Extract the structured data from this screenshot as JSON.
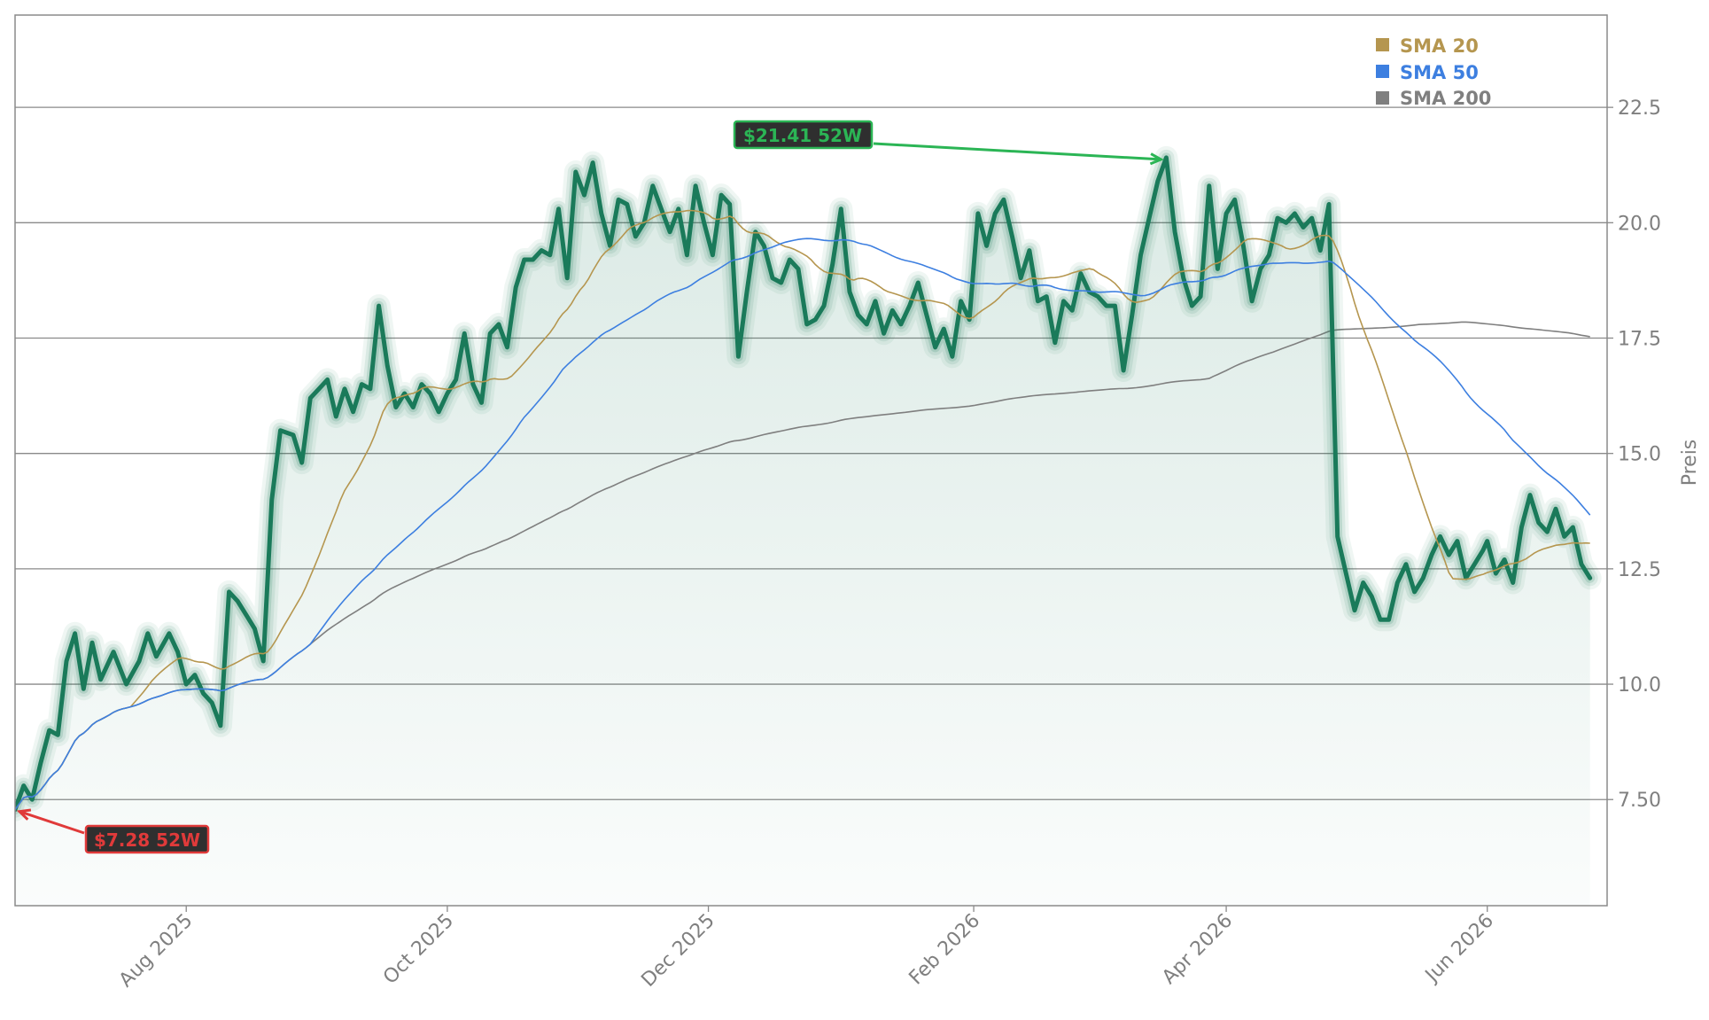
{
  "chart_data": {
    "type": "line",
    "ylabel": "Preis",
    "ylim": [
      5.2,
      24.5
    ],
    "xlim": [
      "2025-06-22",
      "2026-06-29"
    ],
    "grid": "horizontal",
    "legend_position": "top-right",
    "x_ticks": [
      {
        "date": "2025-08-01",
        "label": "Aug 2025"
      },
      {
        "date": "2025-10-01",
        "label": "Oct 2025"
      },
      {
        "date": "2025-12-01",
        "label": "Dec 2025"
      },
      {
        "date": "2026-02-01",
        "label": "Feb 2026"
      },
      {
        "date": "2026-04-01",
        "label": "Apr 2026"
      },
      {
        "date": "2026-06-01",
        "label": "Jun 2026"
      }
    ],
    "y_ticks": [
      {
        "value": 7.5,
        "label": "7.50"
      },
      {
        "value": 10.0,
        "label": "10.0"
      },
      {
        "value": 12.5,
        "label": "12.5"
      },
      {
        "value": 15.0,
        "label": "15.0"
      },
      {
        "value": 17.5,
        "label": "17.5"
      },
      {
        "value": 20.0,
        "label": "20.0"
      },
      {
        "value": 22.5,
        "label": "22.5"
      }
    ],
    "colors": {
      "price": "#1a7a5a",
      "price_glow": "#1a7a5a",
      "fill": "#1a7a5a",
      "sma20": "#b5964f",
      "sma50": "#3d7fe0",
      "sma200": "#7f7f7f",
      "grid": "#8a8a8a",
      "high": "#2bb555",
      "low": "#e03a3a"
    },
    "series": [
      {
        "name": "Price",
        "points": [
          [
            "2025-06-22",
            7.28
          ],
          [
            "2025-06-24",
            7.8
          ],
          [
            "2025-06-26",
            7.5
          ],
          [
            "2025-06-28",
            8.3
          ],
          [
            "2025-06-30",
            9.0
          ],
          [
            "2025-07-02",
            8.9
          ],
          [
            "2025-07-04",
            10.5
          ],
          [
            "2025-07-06",
            11.1
          ],
          [
            "2025-07-08",
            9.9
          ],
          [
            "2025-07-10",
            10.9
          ],
          [
            "2025-07-12",
            10.1
          ],
          [
            "2025-07-15",
            10.7
          ],
          [
            "2025-07-18",
            10.0
          ],
          [
            "2025-07-21",
            10.5
          ],
          [
            "2025-07-23",
            11.1
          ],
          [
            "2025-07-25",
            10.6
          ],
          [
            "2025-07-28",
            11.1
          ],
          [
            "2025-07-30",
            10.7
          ],
          [
            "2025-08-01",
            10.0
          ],
          [
            "2025-08-03",
            10.2
          ],
          [
            "2025-08-05",
            9.8
          ],
          [
            "2025-08-07",
            9.6
          ],
          [
            "2025-08-09",
            9.1
          ],
          [
            "2025-08-11",
            12.0
          ],
          [
            "2025-08-13",
            11.8
          ],
          [
            "2025-08-15",
            11.5
          ],
          [
            "2025-08-17",
            11.2
          ],
          [
            "2025-08-19",
            10.5
          ],
          [
            "2025-08-21",
            14.0
          ],
          [
            "2025-08-23",
            15.5
          ],
          [
            "2025-08-26",
            15.4
          ],
          [
            "2025-08-28",
            14.8
          ],
          [
            "2025-08-30",
            16.2
          ],
          [
            "2025-09-01",
            16.4
          ],
          [
            "2025-09-03",
            16.6
          ],
          [
            "2025-09-05",
            15.8
          ],
          [
            "2025-09-07",
            16.4
          ],
          [
            "2025-09-09",
            15.9
          ],
          [
            "2025-09-11",
            16.5
          ],
          [
            "2025-09-13",
            16.4
          ],
          [
            "2025-09-15",
            18.2
          ],
          [
            "2025-09-17",
            16.9
          ],
          [
            "2025-09-19",
            16.0
          ],
          [
            "2025-09-21",
            16.3
          ],
          [
            "2025-09-23",
            16.0
          ],
          [
            "2025-09-25",
            16.5
          ],
          [
            "2025-09-27",
            16.3
          ],
          [
            "2025-09-29",
            15.9
          ],
          [
            "2025-10-01",
            16.3
          ],
          [
            "2025-10-03",
            16.6
          ],
          [
            "2025-10-05",
            17.6
          ],
          [
            "2025-10-07",
            16.5
          ],
          [
            "2025-10-09",
            16.1
          ],
          [
            "2025-10-11",
            17.6
          ],
          [
            "2025-10-13",
            17.8
          ],
          [
            "2025-10-15",
            17.3
          ],
          [
            "2025-10-17",
            18.6
          ],
          [
            "2025-10-19",
            19.2
          ],
          [
            "2025-10-21",
            19.2
          ],
          [
            "2025-10-23",
            19.4
          ],
          [
            "2025-10-25",
            19.3
          ],
          [
            "2025-10-27",
            20.3
          ],
          [
            "2025-10-29",
            18.8
          ],
          [
            "2025-10-31",
            21.1
          ],
          [
            "2025-11-02",
            20.6
          ],
          [
            "2025-11-04",
            21.3
          ],
          [
            "2025-11-06",
            20.2
          ],
          [
            "2025-11-08",
            19.5
          ],
          [
            "2025-11-10",
            20.5
          ],
          [
            "2025-11-12",
            20.4
          ],
          [
            "2025-11-14",
            19.7
          ],
          [
            "2025-11-16",
            20.0
          ],
          [
            "2025-11-18",
            20.8
          ],
          [
            "2025-11-20",
            20.3
          ],
          [
            "2025-11-22",
            19.8
          ],
          [
            "2025-11-24",
            20.3
          ],
          [
            "2025-11-26",
            19.3
          ],
          [
            "2025-11-28",
            20.8
          ],
          [
            "2025-11-30",
            20.0
          ],
          [
            "2025-12-02",
            19.3
          ],
          [
            "2025-12-04",
            20.6
          ],
          [
            "2025-12-06",
            20.4
          ],
          [
            "2025-12-08",
            17.1
          ],
          [
            "2025-12-10",
            18.5
          ],
          [
            "2025-12-12",
            19.8
          ],
          [
            "2025-12-14",
            19.5
          ],
          [
            "2025-12-16",
            18.8
          ],
          [
            "2025-12-18",
            18.7
          ],
          [
            "2025-12-20",
            19.2
          ],
          [
            "2025-12-22",
            19.0
          ],
          [
            "2025-12-24",
            17.8
          ],
          [
            "2025-12-26",
            17.9
          ],
          [
            "2025-12-28",
            18.2
          ],
          [
            "2025-12-30",
            19.1
          ],
          [
            "2026-01-01",
            20.3
          ],
          [
            "2026-01-03",
            18.5
          ],
          [
            "2026-01-05",
            18.0
          ],
          [
            "2026-01-07",
            17.8
          ],
          [
            "2026-01-09",
            18.3
          ],
          [
            "2026-01-11",
            17.6
          ],
          [
            "2026-01-13",
            18.1
          ],
          [
            "2026-01-15",
            17.8
          ],
          [
            "2026-01-17",
            18.2
          ],
          [
            "2026-01-19",
            18.7
          ],
          [
            "2026-01-21",
            18.0
          ],
          [
            "2026-01-23",
            17.3
          ],
          [
            "2026-01-25",
            17.7
          ],
          [
            "2026-01-27",
            17.1
          ],
          [
            "2026-01-29",
            18.3
          ],
          [
            "2026-01-31",
            17.9
          ],
          [
            "2026-02-02",
            20.2
          ],
          [
            "2026-02-04",
            19.5
          ],
          [
            "2026-02-06",
            20.2
          ],
          [
            "2026-02-08",
            20.5
          ],
          [
            "2026-02-10",
            19.7
          ],
          [
            "2026-02-12",
            18.8
          ],
          [
            "2026-02-14",
            19.4
          ],
          [
            "2026-02-16",
            18.3
          ],
          [
            "2026-02-18",
            18.4
          ],
          [
            "2026-02-20",
            17.4
          ],
          [
            "2026-02-22",
            18.3
          ],
          [
            "2026-02-24",
            18.1
          ],
          [
            "2026-02-26",
            18.9
          ],
          [
            "2026-02-28",
            18.5
          ],
          [
            "2026-03-02",
            18.4
          ],
          [
            "2026-03-04",
            18.2
          ],
          [
            "2026-03-06",
            18.2
          ],
          [
            "2026-03-08",
            16.8
          ],
          [
            "2026-03-10",
            18.0
          ],
          [
            "2026-03-12",
            19.3
          ],
          [
            "2026-03-14",
            20.1
          ],
          [
            "2026-03-16",
            20.9
          ],
          [
            "2026-03-18",
            21.41
          ],
          [
            "2026-03-20",
            19.8
          ],
          [
            "2026-03-22",
            18.8
          ],
          [
            "2026-03-24",
            18.2
          ],
          [
            "2026-03-26",
            18.4
          ],
          [
            "2026-03-28",
            20.8
          ],
          [
            "2026-03-30",
            19.0
          ],
          [
            "2026-04-01",
            20.2
          ],
          [
            "2026-04-03",
            20.5
          ],
          [
            "2026-04-05",
            19.5
          ],
          [
            "2026-04-07",
            18.3
          ],
          [
            "2026-04-09",
            19.0
          ],
          [
            "2026-04-11",
            19.3
          ],
          [
            "2026-04-13",
            20.1
          ],
          [
            "2026-04-15",
            20.0
          ],
          [
            "2026-04-17",
            20.2
          ],
          [
            "2026-04-19",
            19.9
          ],
          [
            "2026-04-21",
            20.1
          ],
          [
            "2026-04-23",
            19.4
          ],
          [
            "2026-04-25",
            20.4
          ],
          [
            "2026-04-27",
            13.2
          ],
          [
            "2026-04-29",
            12.4
          ],
          [
            "2026-05-01",
            11.6
          ],
          [
            "2026-05-03",
            12.2
          ],
          [
            "2026-05-05",
            11.9
          ],
          [
            "2026-05-07",
            11.4
          ],
          [
            "2026-05-09",
            11.4
          ],
          [
            "2026-05-11",
            12.2
          ],
          [
            "2026-05-13",
            12.6
          ],
          [
            "2026-05-15",
            12.0
          ],
          [
            "2026-05-17",
            12.3
          ],
          [
            "2026-05-19",
            12.8
          ],
          [
            "2026-05-21",
            13.2
          ],
          [
            "2026-05-23",
            12.8
          ],
          [
            "2026-05-25",
            13.1
          ],
          [
            "2026-05-27",
            12.3
          ],
          [
            "2026-05-29",
            12.6
          ],
          [
            "2026-05-31",
            12.9
          ],
          [
            "2026-06-01",
            13.1
          ],
          [
            "2026-06-03",
            12.4
          ],
          [
            "2026-06-05",
            12.7
          ],
          [
            "2026-06-07",
            12.2
          ],
          [
            "2026-06-09",
            13.4
          ],
          [
            "2026-06-11",
            14.1
          ],
          [
            "2026-06-13",
            13.5
          ],
          [
            "2026-06-15",
            13.3
          ],
          [
            "2026-06-17",
            13.8
          ],
          [
            "2026-06-19",
            13.2
          ],
          [
            "2026-06-21",
            13.4
          ],
          [
            "2026-06-23",
            12.6
          ],
          [
            "2026-06-25",
            12.3
          ]
        ]
      }
    ]
  }
}
